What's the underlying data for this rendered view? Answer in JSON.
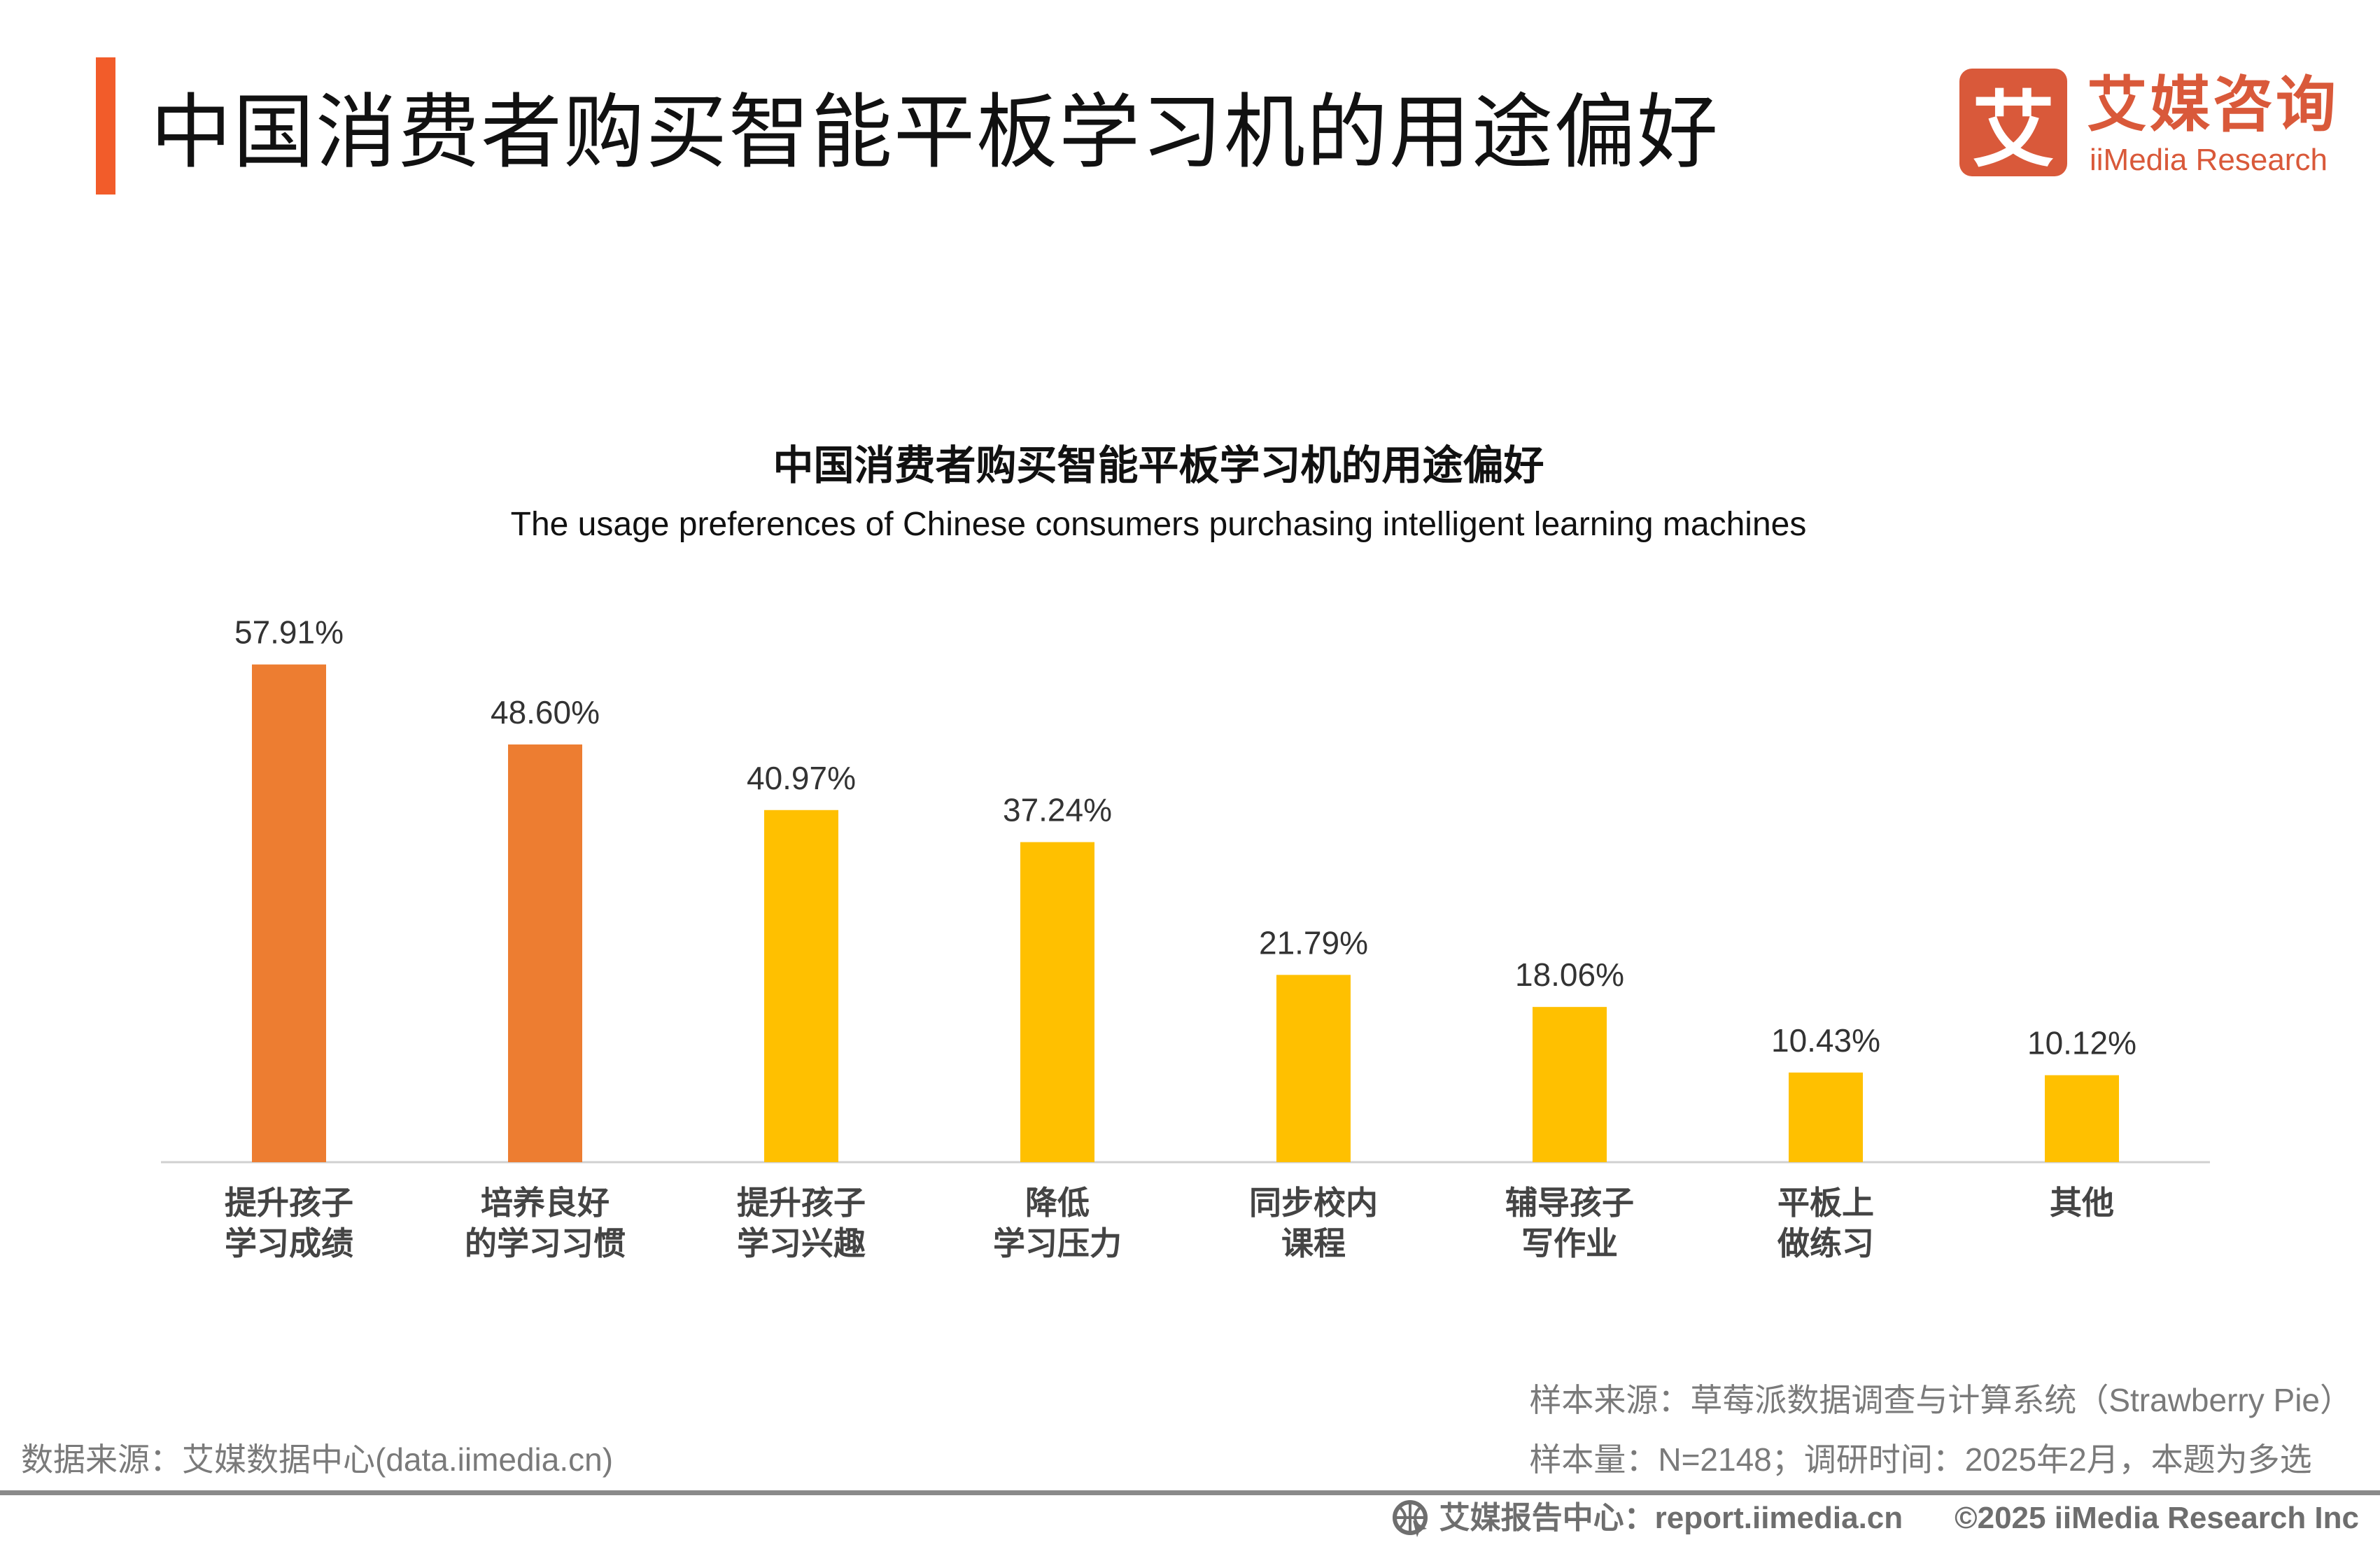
{
  "header": {
    "title": "中国消费者购买智能平板学习机的用途偏好"
  },
  "logo": {
    "mark": "艾",
    "name_cn": "艾媒咨询",
    "name_en": "iiMedia Research",
    "color": "#D9593A"
  },
  "chart_data": {
    "type": "bar",
    "title": "中国消费者购买智能平板学习机的用途偏好",
    "subtitle": "The usage preferences of Chinese consumers purchasing intelligent learning machines",
    "categories": [
      "提升孩子\n学习成绩",
      "培养良好\n的学习习惯",
      "提升孩子\n学习兴趣",
      "降低\n学习压力",
      "同步校内\n课程",
      "辅导孩子\n写作业",
      "平板上\n做练习",
      "其他"
    ],
    "values": [
      57.91,
      48.6,
      40.97,
      37.24,
      21.79,
      18.06,
      10.43,
      10.12
    ],
    "value_labels": [
      "57.91%",
      "48.60%",
      "40.97%",
      "37.24%",
      "21.79%",
      "18.06%",
      "10.43%",
      "10.12%"
    ],
    "unit": "%",
    "colors": [
      "#ED7D31",
      "#ED7D31",
      "#FFC000",
      "#FFC000",
      "#FFC000",
      "#FFC000",
      "#FFC000",
      "#FFC000"
    ],
    "ylim": [
      0,
      60
    ],
    "grid": false,
    "yaxis_visible": false
  },
  "footer": {
    "data_source": "数据来源：艾媒数据中心(data.iimedia.cn)",
    "sample_source": "样本来源：草莓派数据调查与计算系统（Strawberry Pie）",
    "sample_info": "样本量：N=2148；调研时间：2025年2月，本题为多选",
    "report_center": "艾媒报告中心：report.iimedia.cn",
    "copyright": "©2025  iiMedia Research  Inc"
  }
}
